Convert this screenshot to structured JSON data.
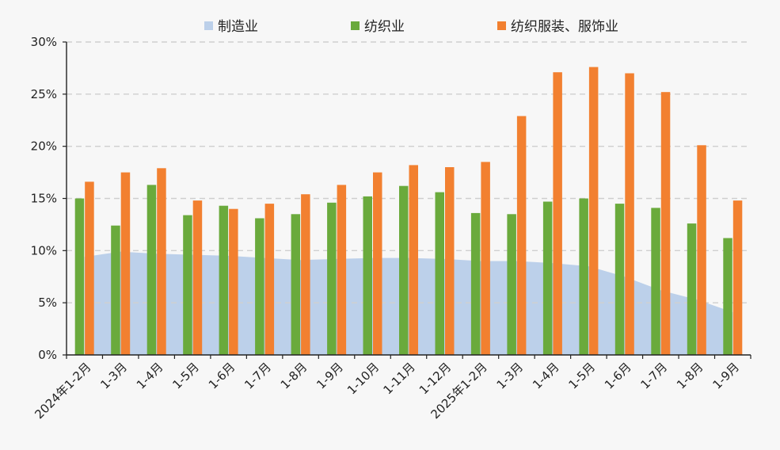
{
  "chart_data": {
    "type": "bar",
    "title": "",
    "xlabel": "",
    "ylabel": "",
    "ylim": [
      0,
      30
    ],
    "yticks": [
      "0%",
      "5%",
      "10%",
      "15%",
      "20%",
      "25%",
      "30%"
    ],
    "yticks_values": [
      0,
      5,
      10,
      15,
      20,
      25,
      30
    ],
    "grid": "horizontal-dashed",
    "legend_position": "top",
    "categories": [
      "2024年1-2月",
      "1-3月",
      "1-4月",
      "1-5月",
      "1-6月",
      "1-7月",
      "1-8月",
      "1-9月",
      "1-10月",
      "1-11月",
      "1-12月",
      "2025年1-2月",
      "1-3月",
      "1-4月",
      "1-5月",
      "1-6月",
      "1-7月",
      "1-8月",
      "1-9月"
    ],
    "series": [
      {
        "name": "制造业",
        "kind": "area",
        "color": "#bcd0ea",
        "values": [
          9.4,
          9.9,
          9.7,
          9.6,
          9.5,
          9.3,
          9.1,
          9.2,
          9.3,
          9.3,
          9.2,
          9.0,
          9.0,
          8.8,
          8.5,
          7.5,
          6.2,
          5.3,
          4.1
        ]
      },
      {
        "name": "纺织业",
        "kind": "bar",
        "color": "#6aaa3c",
        "values": [
          15.0,
          12.4,
          16.3,
          13.4,
          14.3,
          13.1,
          13.5,
          14.6,
          15.2,
          16.2,
          15.6,
          13.6,
          13.5,
          14.7,
          15.0,
          14.5,
          14.1,
          12.6,
          11.2
        ]
      },
      {
        "name": "纺织服装、服饰业",
        "kind": "bar",
        "color": "#f28030",
        "values": [
          16.6,
          17.5,
          17.9,
          14.8,
          14.0,
          14.5,
          15.4,
          16.3,
          17.5,
          18.2,
          18.0,
          18.5,
          22.9,
          27.1,
          27.6,
          27.0,
          25.2,
          20.1,
          14.8
        ]
      }
    ]
  }
}
